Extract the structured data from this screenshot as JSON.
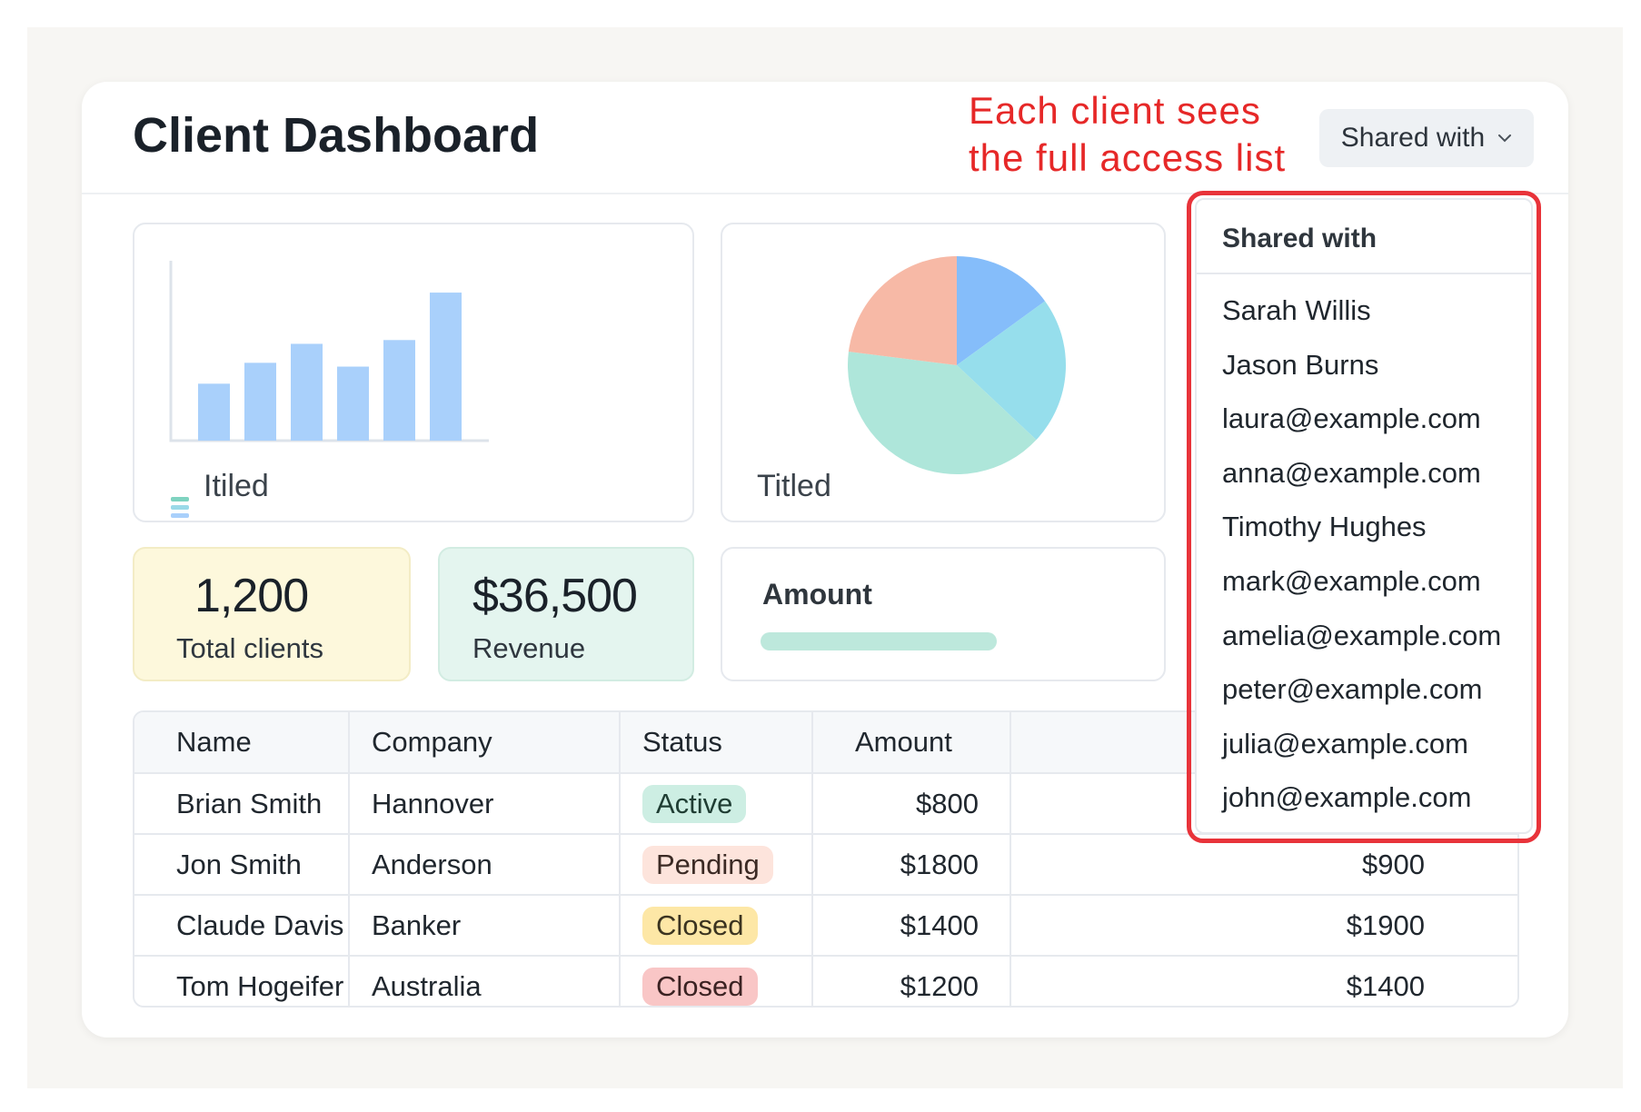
{
  "header": {
    "title": "Client Dashboard",
    "annotation_line1": "Each client sees",
    "annotation_line2": "the full access list",
    "shared_button_label": "Shared with"
  },
  "bar_chart": {
    "label": "Itiled",
    "chart_data": {
      "type": "bar",
      "categories": [
        "",
        "",
        "",
        "",
        "",
        ""
      ],
      "values": [
        30,
        41,
        51,
        39,
        53,
        78
      ],
      "ylim": [
        0,
        90
      ],
      "colors": {
        "bar": "#a9d0fb",
        "axis": "#dde3ea"
      }
    }
  },
  "pie_chart": {
    "label": "Titled",
    "chart_data": {
      "type": "pie",
      "values": [
        15,
        22,
        40,
        23
      ],
      "colors": [
        "#85bdfa",
        "#96deec",
        "#aee6da",
        "#f7b9a6"
      ]
    }
  },
  "stats": {
    "clients_value": "1,200",
    "clients_label": "Total clients",
    "revenue_value": "$36,500",
    "revenue_label": "Revenue",
    "amount_label": "Amount",
    "amount_progress": 1.0
  },
  "table": {
    "headers": [
      "Name",
      "Company",
      "Status",
      "Amount"
    ],
    "rows": [
      {
        "name": "Brian Smith",
        "company": "Hannover",
        "status": "Active",
        "amount": "$800",
        "amount2": ""
      },
      {
        "name": "Jon Smith",
        "company": "Anderson",
        "status": "Pending",
        "amount": "$1800",
        "amount2": "$900"
      },
      {
        "name": "Claude Davis",
        "company": "Banker",
        "status": "Closed",
        "amount": "$1400",
        "amount2": "$1900"
      },
      {
        "name": "Tom Hogeifer",
        "company": "Australia",
        "status": "Closed",
        "amount": "$1200",
        "amount2": "$1400"
      }
    ],
    "status_colors": {
      "active": {
        "bg": "#cdeee3",
        "fg": "#1f3d33"
      },
      "pending": {
        "bg": "#fde4dc",
        "fg": "#3b2a24"
      },
      "closed_yellow": {
        "bg": "#fde7a6",
        "fg": "#3b3320"
      },
      "closed_red": {
        "bg": "#f9c6c6",
        "fg": "#3b2222"
      }
    }
  },
  "shared_dropdown": {
    "header": "Shared with",
    "items": [
      "Sarah Willis",
      "Jason Burns",
      "laura@example.com",
      "anna@example.com",
      "Timothy Hughes",
      "mark@example.com",
      "amelia@example.com",
      "peter@example.com",
      "julia@example.com",
      "john@example.com"
    ],
    "highlight_color": "#e8333a"
  }
}
